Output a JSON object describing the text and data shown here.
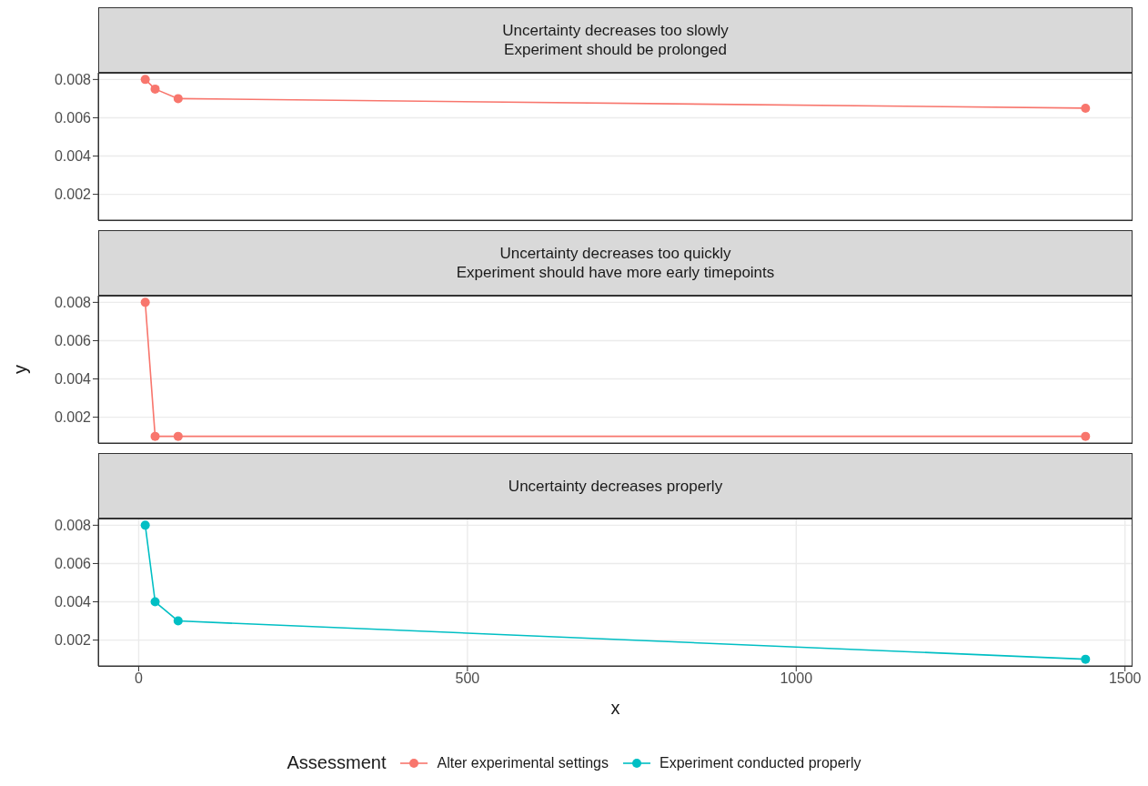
{
  "chart_data": [
    {
      "type": "line",
      "title": "Uncertainty decreases too slowly\nExperiment should be prolonged",
      "x": [
        10,
        25,
        60,
        1440
      ],
      "series": [
        {
          "name": "Alter experimental settings",
          "color": "#f8766d",
          "values": [
            0.008,
            0.0075,
            0.007,
            0.0065
          ]
        }
      ],
      "xlim": [
        -61.5,
        1511.5
      ],
      "xticks": [
        0,
        500,
        1000,
        1500
      ],
      "ylim": [
        0.00065,
        0.00835
      ],
      "yticks": [
        0.002,
        0.004,
        0.006,
        0.008
      ],
      "grid": true,
      "marker": "circle",
      "tick_labels": "y"
    },
    {
      "type": "line",
      "title": "Uncertainty decreases too quickly\nExperiment should have more early timepoints",
      "ylabel": "y",
      "x": [
        10,
        25,
        60,
        1440
      ],
      "series": [
        {
          "name": "Alter experimental settings",
          "color": "#f8766d",
          "values": [
            0.008,
            0.001,
            0.001,
            0.001
          ]
        }
      ],
      "xlim": [
        -61.5,
        1511.5
      ],
      "xticks": [
        0,
        500,
        1000,
        1500
      ],
      "ylim": [
        0.00065,
        0.00835
      ],
      "yticks": [
        0.002,
        0.004,
        0.006,
        0.008
      ],
      "grid": true,
      "marker": "circle",
      "tick_labels": "y"
    },
    {
      "type": "line",
      "title": "Uncertainty decreases properly",
      "xlabel": "x",
      "legend_title": "Assessment",
      "legend": "bottom",
      "x": [
        10,
        25,
        60,
        1440
      ],
      "series": [
        {
          "name": "Experiment conducted properly",
          "color": "#00bfc4",
          "values": [
            0.008,
            0.004,
            0.003,
            0.001
          ]
        }
      ],
      "xlim": [
        -61.5,
        1511.5
      ],
      "xticks": [
        0,
        500,
        1000,
        1500
      ],
      "ylim": [
        0.00065,
        0.00835
      ],
      "yticks": [
        0.002,
        0.004,
        0.006,
        0.008
      ],
      "grid": true,
      "marker": "circle"
    }
  ]
}
